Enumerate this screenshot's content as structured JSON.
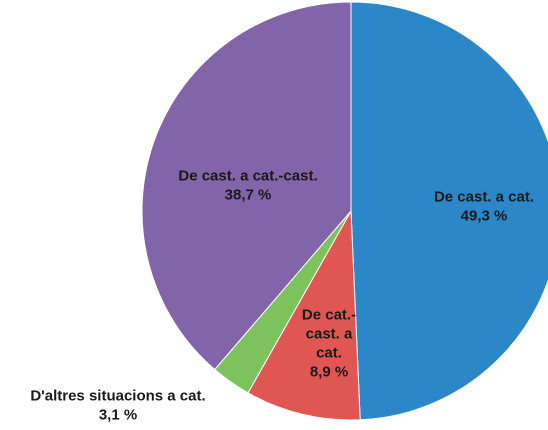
{
  "chart_data": {
    "type": "pie",
    "slices": [
      {
        "name": "De cast. a cat.",
        "value": 49.3,
        "value_label": "49,3 %",
        "color": "#2b87c8",
        "label_lines": [
          "De cast. a cat.",
          "49,3 %"
        ]
      },
      {
        "name": "De cat.-cast. a cat.",
        "value": 8.9,
        "value_label": "8,9 %",
        "color": "#e05653",
        "label_lines": [
          "De cat.-",
          "cast. a",
          "cat.",
          "8,9 %"
        ]
      },
      {
        "name": "D'altres situacions a cat.",
        "value": 3.1,
        "value_label": "3,1 %",
        "color": "#7cc35e",
        "label_lines": [
          "D'altres situacions a cat.",
          "3,1 %"
        ]
      },
      {
        "name": "De cast. a cat.-cast.",
        "value": 38.7,
        "value_label": "38,7 %",
        "color": "#8264a8",
        "label_lines": [
          "De cast. a cat.-cast.",
          "38,7 %"
        ]
      }
    ],
    "start": "top",
    "direction": "clockwise"
  }
}
